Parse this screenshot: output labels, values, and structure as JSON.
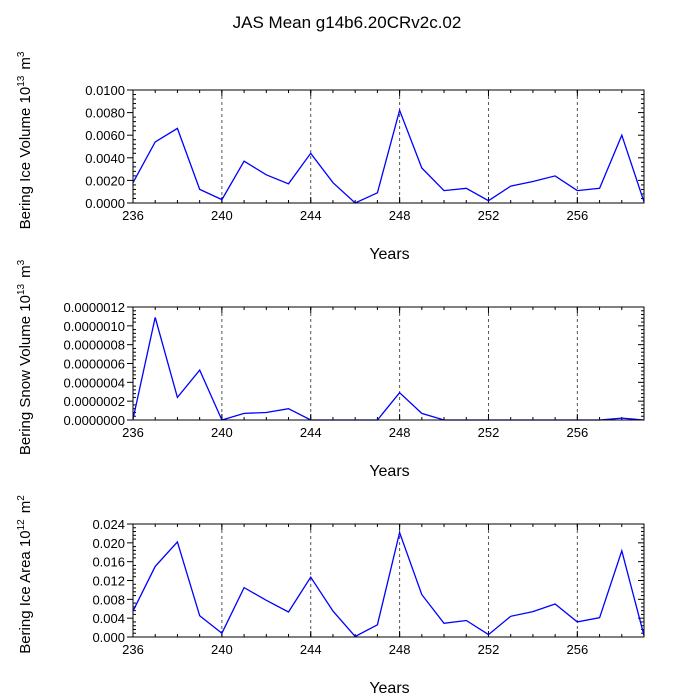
{
  "title": "JAS Mean g14b6.20CRv2c.02",
  "line_color": "#0000ff",
  "chart_data": [
    {
      "type": "line",
      "ylabel_main": "Bering Ice Volume 10",
      "ylabel_exp": "13",
      "ylabel_unit": "m",
      "ylabel_unit_exp": "3",
      "xlabel": "Years",
      "xlim": [
        236,
        259
      ],
      "ylim": [
        0,
        0.01
      ],
      "xticks": [
        236,
        240,
        244,
        248,
        252,
        256
      ],
      "xtick_labels": [
        "236",
        "240",
        "244",
        "248",
        "252",
        "256"
      ],
      "yticks": [
        0,
        0.002,
        0.004,
        0.006,
        0.008,
        0.01
      ],
      "ytick_labels": [
        "0.0000",
        "0.0020",
        "0.0040",
        "0.0060",
        "0.0080",
        "0.0100"
      ],
      "x": [
        236,
        237,
        238,
        239,
        240,
        241,
        242,
        243,
        244,
        245,
        246,
        247,
        248,
        249,
        250,
        251,
        252,
        253,
        254,
        255,
        256,
        257,
        258,
        259
      ],
      "y": [
        0.0018,
        0.0054,
        0.0066,
        0.0012,
        0.0003,
        0.0037,
        0.0025,
        0.0017,
        0.0044,
        0.0018,
        0.0,
        0.0009,
        0.0082,
        0.0031,
        0.0011,
        0.0013,
        0.0002,
        0.0015,
        0.0019,
        0.0024,
        0.0011,
        0.0013,
        0.006,
        0.0001
      ]
    },
    {
      "type": "line",
      "ylabel_main": "Bering Snow Volume 10",
      "ylabel_exp": "13",
      "ylabel_unit": "m",
      "ylabel_unit_exp": "3",
      "xlabel": "Years",
      "xlim": [
        236,
        259
      ],
      "ylim": [
        0,
        1.2e-06
      ],
      "xticks": [
        236,
        240,
        244,
        248,
        252,
        256
      ],
      "xtick_labels": [
        "236",
        "240",
        "244",
        "248",
        "252",
        "256"
      ],
      "yticks": [
        0,
        2e-07,
        4e-07,
        6e-07,
        8e-07,
        1e-06,
        1.2e-06
      ],
      "ytick_labels": [
        "0.0000000",
        "0.0000002",
        "0.0000004",
        "0.0000006",
        "0.0000008",
        "0.0000010",
        "0.0000012"
      ],
      "x": [
        236,
        237,
        238,
        239,
        240,
        241,
        242,
        243,
        244,
        245,
        246,
        247,
        248,
        249,
        250,
        251,
        252,
        253,
        254,
        255,
        256,
        257,
        258,
        259
      ],
      "y": [
        1e-08,
        1.09e-06,
        2.4e-07,
        5.3e-07,
        0.0,
        7e-08,
        8e-08,
        1.2e-07,
        0.0,
        0.0,
        0.0,
        0.0,
        2.9e-07,
        7e-08,
        0.0,
        0.0,
        0.0,
        0.0,
        0.0,
        0.0,
        0.0,
        0.0,
        2e-08,
        0.0
      ]
    },
    {
      "type": "line",
      "ylabel_main": "Bering Ice Area 10",
      "ylabel_exp": "12",
      "ylabel_unit": "m",
      "ylabel_unit_exp": "2",
      "xlabel": "Years",
      "xlim": [
        236,
        259
      ],
      "ylim": [
        0,
        0.024
      ],
      "xticks": [
        236,
        240,
        244,
        248,
        252,
        256
      ],
      "xtick_labels": [
        "236",
        "240",
        "244",
        "248",
        "252",
        "256"
      ],
      "yticks": [
        0,
        0.004,
        0.008,
        0.012,
        0.016,
        0.02,
        0.024
      ],
      "ytick_labels": [
        "0.000",
        "0.004",
        "0.008",
        "0.012",
        "0.016",
        "0.020",
        "0.024"
      ],
      "x": [
        236,
        237,
        238,
        239,
        240,
        241,
        242,
        243,
        244,
        245,
        246,
        247,
        248,
        249,
        250,
        251,
        252,
        253,
        254,
        255,
        256,
        257,
        258,
        259
      ],
      "y": [
        0.0055,
        0.015,
        0.0202,
        0.0045,
        0.0008,
        0.0105,
        0.0078,
        0.0053,
        0.0127,
        0.0055,
        0.0001,
        0.0026,
        0.0222,
        0.009,
        0.0029,
        0.0035,
        0.0005,
        0.0044,
        0.0054,
        0.007,
        0.0032,
        0.0041,
        0.0183,
        0.0003
      ]
    }
  ]
}
